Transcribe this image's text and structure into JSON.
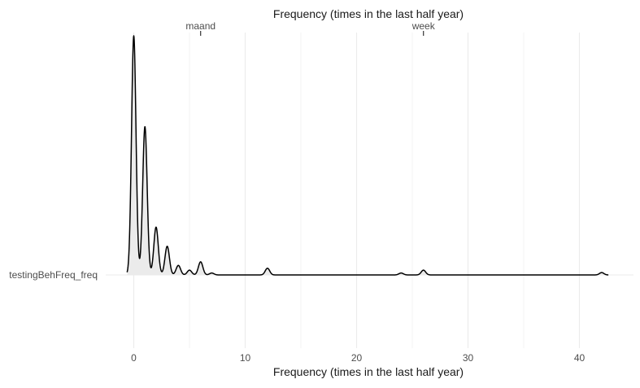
{
  "chart_data": {
    "type": "area",
    "subtype": "ridgeline-density",
    "title_top": "Frequency (times in the last half year)",
    "xlabel": "Frequency (times in the last half year)",
    "ylabel": "",
    "xlim": [
      -1,
      44.5
    ],
    "x_ticks": [
      0,
      10,
      20,
      30,
      40
    ],
    "x_tick_labels": [
      "0",
      "10",
      "20",
      "30",
      "40"
    ],
    "top_axis_ticks": [
      {
        "x": 6,
        "label": "maand"
      },
      {
        "x": 26,
        "label": "week"
      }
    ],
    "category": "testingBehFreq_freq",
    "grid": true,
    "fill_color": "#ebebeb",
    "line_color": "#000000",
    "grid_color": "#ebebeb",
    "density_peaks": [
      {
        "x": 0,
        "height": 1.0,
        "width": 0.2
      },
      {
        "x": 1,
        "height": 0.62,
        "width": 0.2
      },
      {
        "x": 2,
        "height": 0.2,
        "width": 0.2
      },
      {
        "x": 3,
        "height": 0.12,
        "width": 0.2
      },
      {
        "x": 4,
        "height": 0.04,
        "width": 0.2
      },
      {
        "x": 5,
        "height": 0.02,
        "width": 0.2
      },
      {
        "x": 6,
        "height": 0.055,
        "width": 0.2
      },
      {
        "x": 7,
        "height": 0.008,
        "width": 0.2
      },
      {
        "x": 12,
        "height": 0.028,
        "width": 0.2
      },
      {
        "x": 24,
        "height": 0.008,
        "width": 0.2
      },
      {
        "x": 26,
        "height": 0.02,
        "width": 0.2
      },
      {
        "x": 42,
        "height": 0.01,
        "width": 0.2
      }
    ],
    "density_range": [
      -0.6,
      42.6
    ]
  }
}
